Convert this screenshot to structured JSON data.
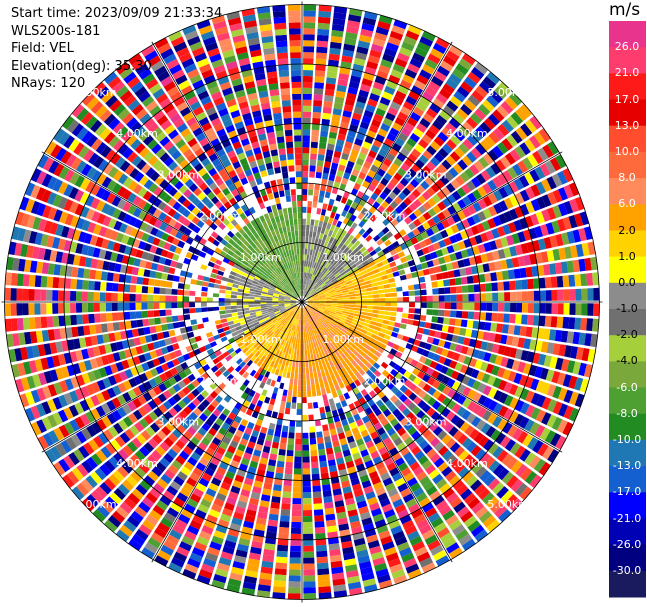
{
  "header": {
    "start_time": "Start time: 2023/09/09 21:33:34",
    "instrument": "WLS200s-181",
    "field": "Field: VEL",
    "elevation": "Elevation(deg): 35.30",
    "nrays": "NRays: 120"
  },
  "colorbar": {
    "unit": "m/s",
    "ticks": [
      "26.0",
      "21.0",
      "17.0",
      "13.0",
      "10.0",
      "8.0",
      "6.0",
      "2.0",
      "1.0",
      "0.0",
      "-1.0",
      "-2.0",
      "-4.0",
      "-6.0",
      "-8.0",
      "-10.0",
      "-13.0",
      "-17.0",
      "-21.0",
      "-26.0",
      "-30.0"
    ],
    "colors": [
      "#e8348c",
      "#ff3c6e",
      "#ff1a1a",
      "#e60000",
      "#ff4d2e",
      "#ff6a3d",
      "#ff8a5c",
      "#ffa200",
      "#ffd200",
      "#ffff00",
      "#8c8c8c",
      "#707070",
      "#a6cf3c",
      "#7aa83a",
      "#4ea033",
      "#228b22",
      "#1f77b4",
      "#1560d0",
      "#0000ff",
      "#0000b4",
      "#000080",
      "#1a1a5e"
    ]
  },
  "chart_data": {
    "type": "ppi",
    "field": "VEL",
    "unit": "m/s",
    "nrays": 120,
    "elevation_deg": 35.3,
    "range_rings_km": [
      1.0,
      2.0,
      3.0,
      4.0,
      5.0
    ],
    "range_ring_labels": [
      "1.00km",
      "2.00km",
      "3.00km",
      "4.00km",
      "5.00km"
    ],
    "spokes_deg": [
      0,
      30,
      60,
      90,
      120,
      150,
      180,
      210,
      240,
      270,
      300,
      330
    ],
    "near_field_pattern": [
      {
        "sector_deg": [
          0,
          60
        ],
        "to_range_km": 1.4,
        "value_ms": -1.5,
        "note": "gray/yellow-green"
      },
      {
        "sector_deg": [
          60,
          120
        ],
        "to_range_km": 1.6,
        "value_ms": 2.0
      },
      {
        "sector_deg": [
          120,
          190
        ],
        "to_range_km": 1.6,
        "value_ms": 5.5
      },
      {
        "sector_deg": [
          190,
          240
        ],
        "to_range_km": 1.3,
        "value_ms": 2.0
      },
      {
        "sector_deg": [
          240,
          300
        ],
        "to_range_km": 1.3,
        "value_ms": -0.5
      },
      {
        "sector_deg": [
          300,
          360
        ],
        "to_range_km": 1.6,
        "value_ms": -6.0
      }
    ],
    "far_field": "noise (random values over full colour range)"
  }
}
